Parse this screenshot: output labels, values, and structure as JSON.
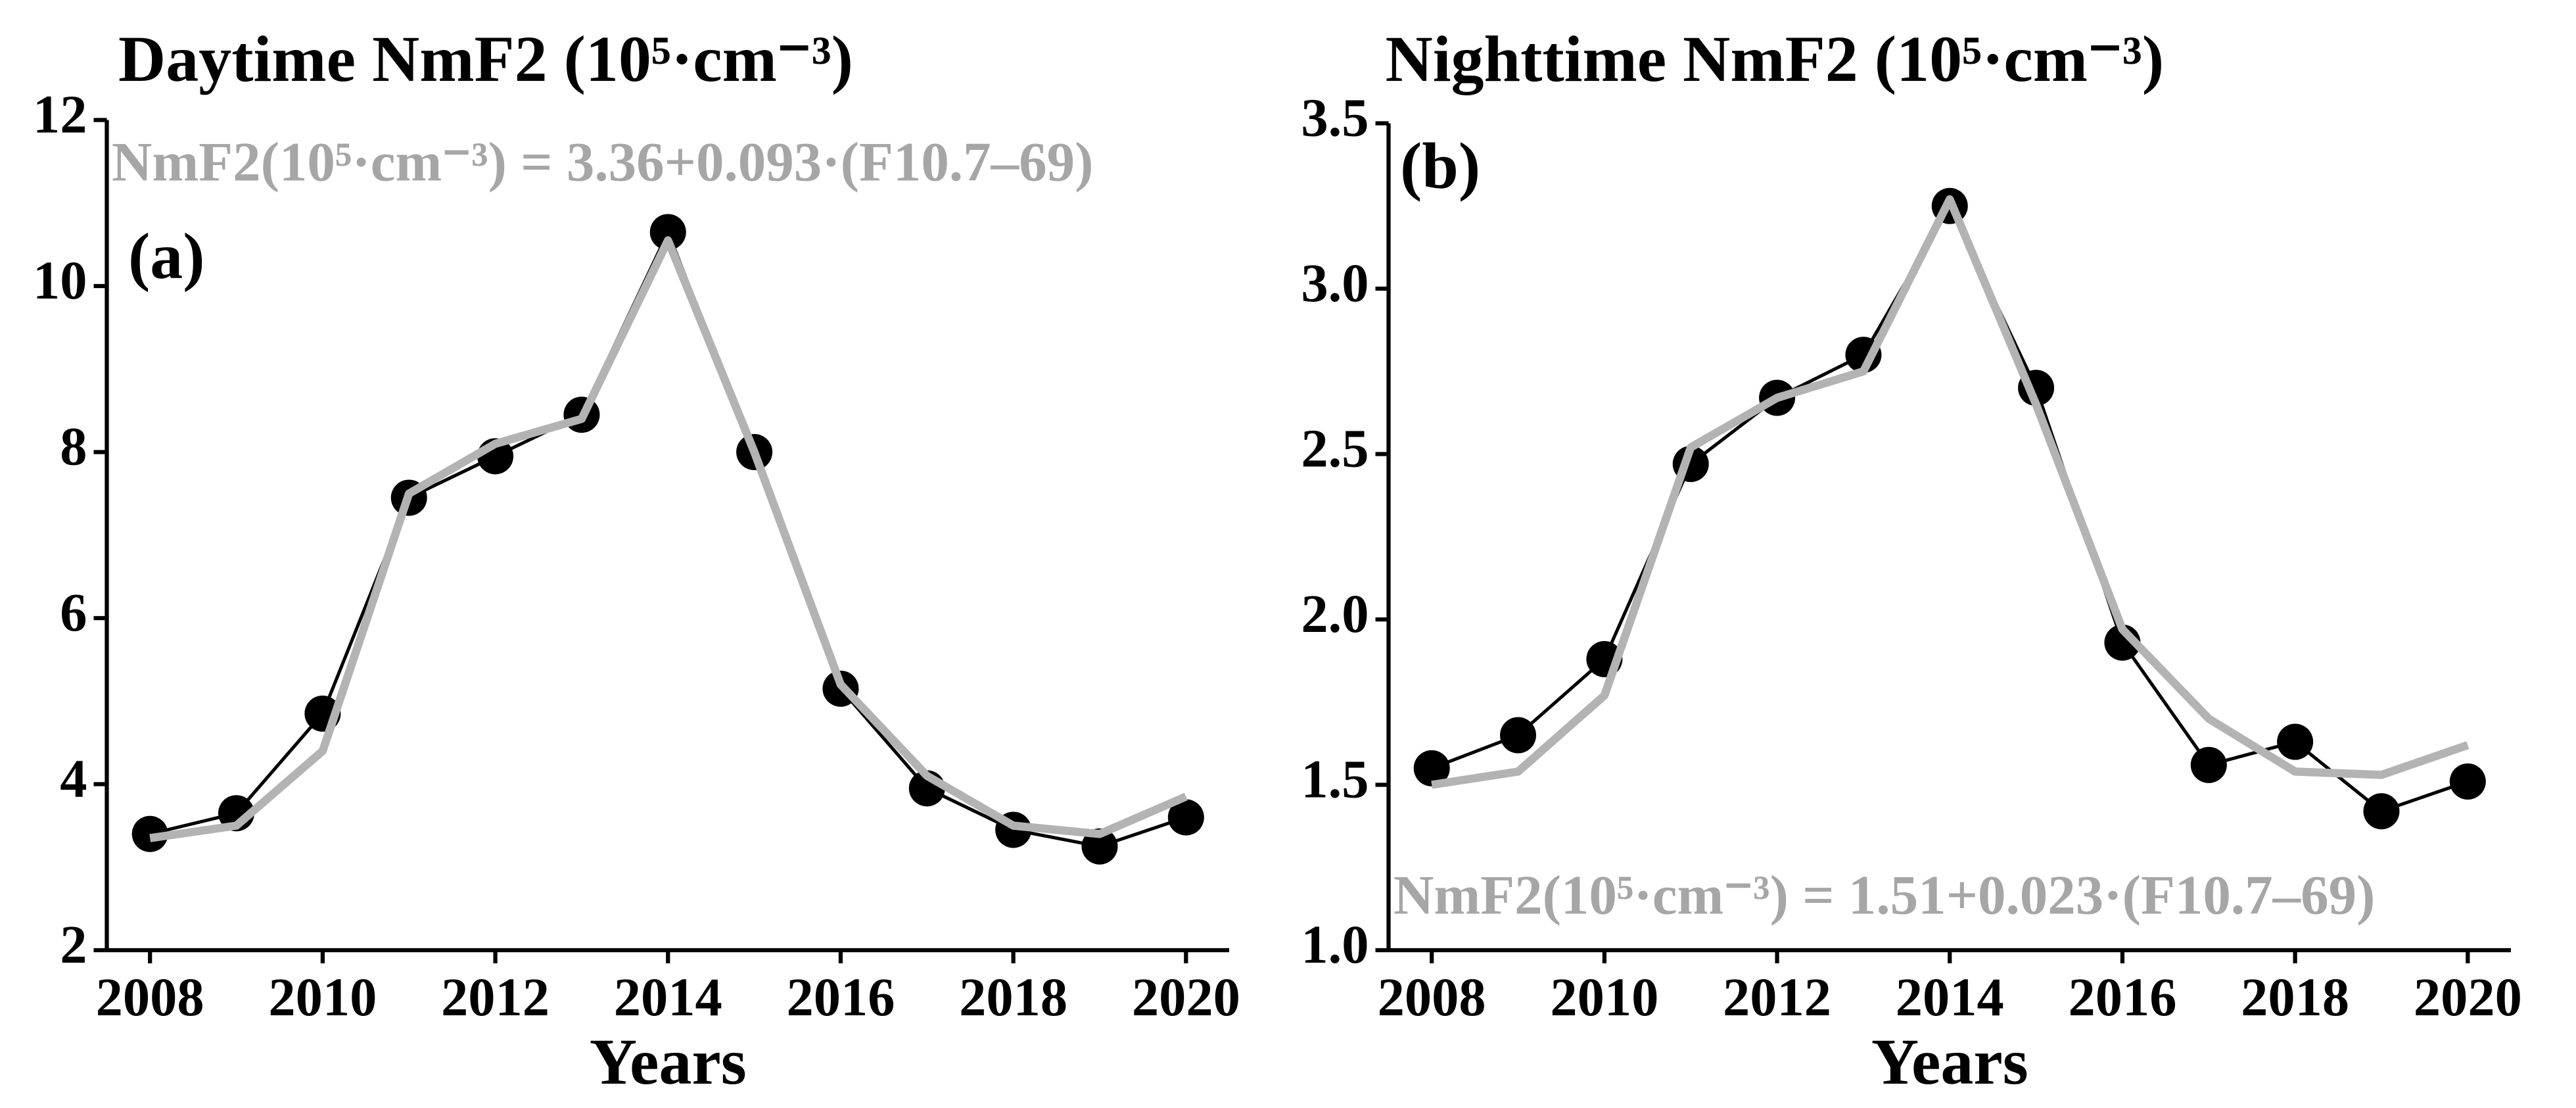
{
  "chart_data": [
    {
      "type": "line",
      "title": "Daytime NmF2 (10⁵·cm⁻³)",
      "annotation": "NmF2(10⁵·cm⁻³) = 3.36+0.093·(F10.7–69)",
      "panel_label": "(a)",
      "x_label": "Years",
      "x": [
        2008,
        2009,
        2010,
        2011,
        2012,
        2013,
        2014,
        2015,
        2016,
        2017,
        2018,
        2019,
        2020
      ],
      "series": [
        {
          "color": "#000000",
          "marker": "circle",
          "values": [
            3.4,
            3.65,
            4.85,
            7.45,
            7.95,
            8.45,
            10.65,
            8.0,
            5.15,
            3.95,
            3.45,
            3.25,
            3.6
          ]
        },
        {
          "color": "#b3b3b3",
          "marker": "none",
          "values": [
            3.35,
            3.5,
            4.4,
            7.5,
            8.1,
            8.4,
            10.55,
            8.0,
            5.2,
            4.1,
            3.5,
            3.4,
            3.85
          ]
        }
      ],
      "xlim": [
        2007.5,
        2020.5
      ],
      "xticks": [
        2008,
        2010,
        2012,
        2014,
        2016,
        2018,
        2020
      ],
      "ylim": [
        2,
        12
      ],
      "yticks": [
        2,
        4,
        6,
        8,
        10,
        12
      ]
    },
    {
      "type": "line",
      "title": "Nighttime NmF2 (10⁵·cm⁻³)",
      "annotation": "NmF2(10⁵·cm⁻³) = 1.51+0.023·(F10.7–69)",
      "panel_label": "(b)",
      "x_label": "Years",
      "x": [
        2008,
        2009,
        2010,
        2011,
        2012,
        2013,
        2014,
        2015,
        2016,
        2017,
        2018,
        2019,
        2020
      ],
      "series": [
        {
          "color": "#000000",
          "marker": "circle",
          "values": [
            1.55,
            1.65,
            1.88,
            2.47,
            2.67,
            2.8,
            3.25,
            2.7,
            1.93,
            1.56,
            1.63,
            1.42,
            1.51
          ]
        },
        {
          "color": "#b3b3b3",
          "marker": "none",
          "values": [
            1.5,
            1.54,
            1.77,
            2.52,
            2.67,
            2.75,
            3.27,
            2.65,
            1.97,
            1.7,
            1.54,
            1.53,
            1.62
          ]
        }
      ],
      "xlim": [
        2007.5,
        2020.5
      ],
      "xticks": [
        2008,
        2010,
        2012,
        2014,
        2016,
        2018,
        2020
      ],
      "ylim": [
        1.0,
        3.5
      ],
      "yticks": [
        {
          "value": 1.0,
          "label": "1.0"
        },
        1.5,
        {
          "value": 2.0,
          "label": "2.0"
        },
        2.5,
        {
          "value": 3.0,
          "label": "3.0"
        },
        3.5
      ]
    }
  ]
}
